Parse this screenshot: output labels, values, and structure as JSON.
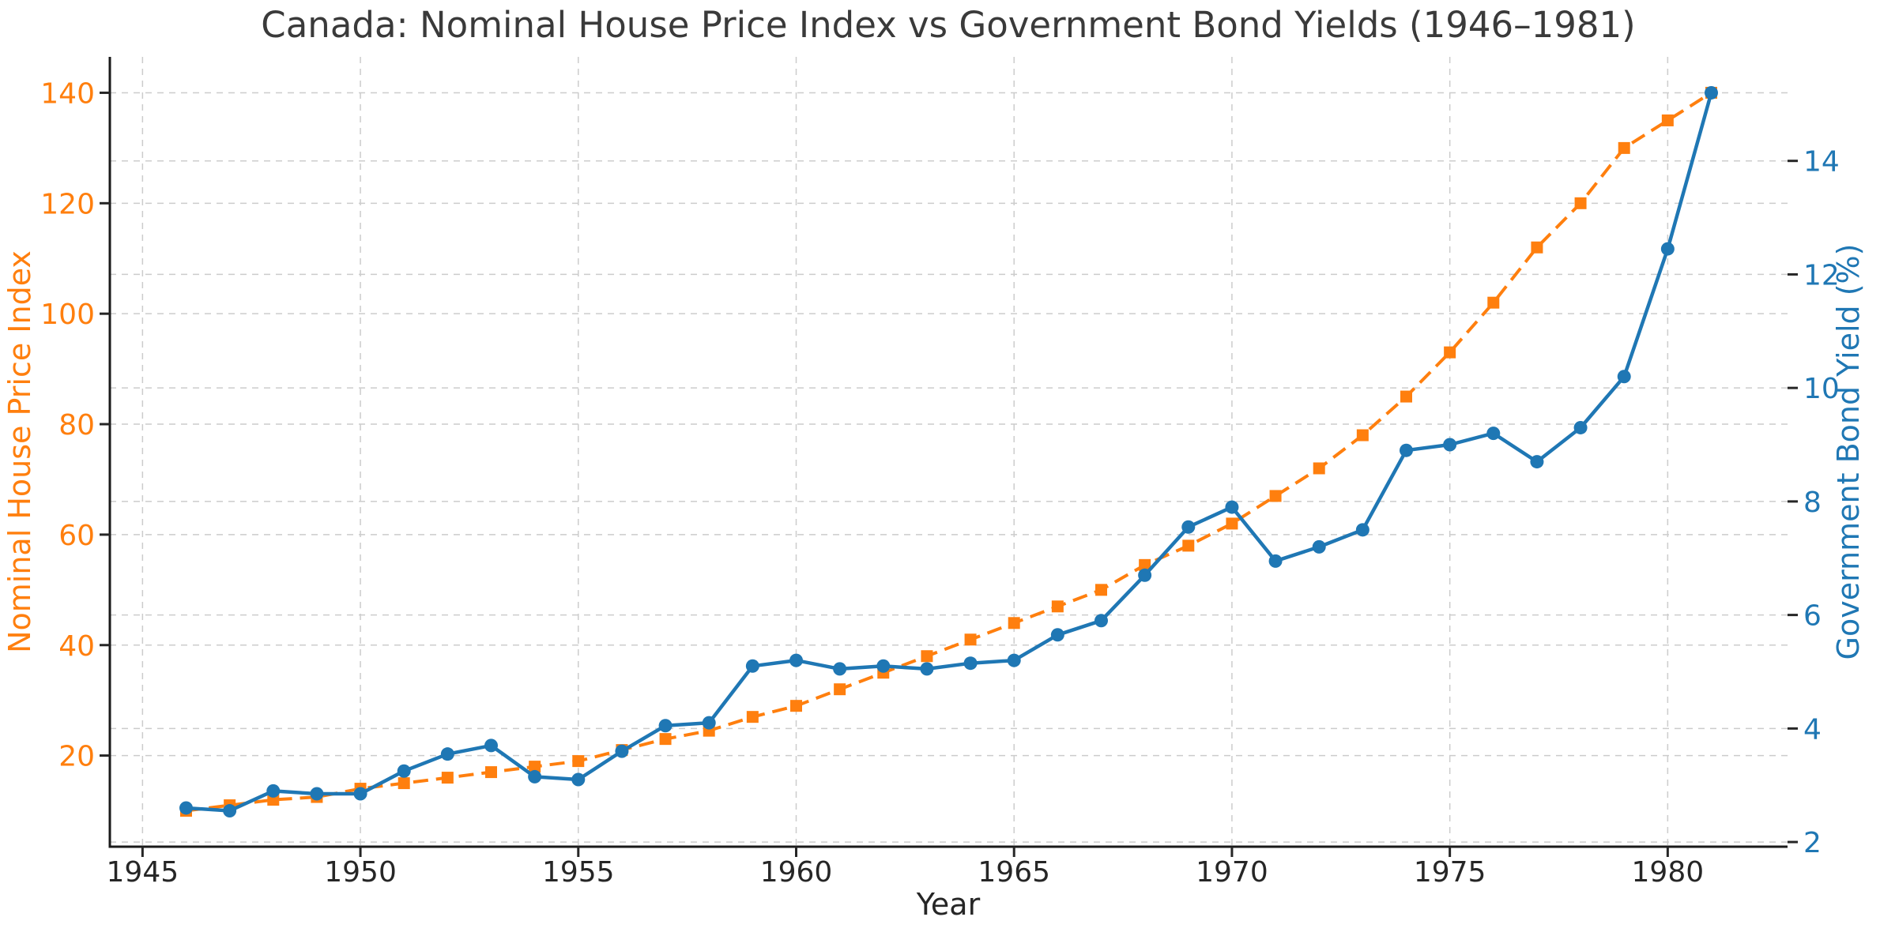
{
  "title": "Canada: Nominal House Price Index vs Government Bond Yields (1946–1981)",
  "x_axis": {
    "label": "Year",
    "tick_labels": [
      "1945",
      "1950",
      "1955",
      "1960",
      "1965",
      "1970",
      "1975",
      "1980"
    ],
    "range": [
      1944.25,
      1982.75
    ]
  },
  "y_left_axis": {
    "label": "Nominal House Price Index",
    "color": "#ff7f0e",
    "tick_labels": [
      "20",
      "40",
      "60",
      "80",
      "100",
      "120",
      "140"
    ],
    "range": [
      3.5,
      146.5
    ]
  },
  "y_right_axis": {
    "label": "Government Bond Yield (%)",
    "color": "#1f77b4",
    "tick_labels": [
      "2",
      "4",
      "6",
      "8",
      "10",
      "12",
      "14"
    ],
    "range": [
      1.9175,
      15.8325
    ]
  },
  "chart_data": {
    "type": "line",
    "title": "Canada: Nominal House Price Index vs Government Bond Yields (1946–1981)",
    "xlabel": "Year",
    "grid": true,
    "legend_position": "none",
    "x": [
      1946,
      1947,
      1948,
      1949,
      1950,
      1951,
      1952,
      1953,
      1954,
      1955,
      1956,
      1957,
      1958,
      1959,
      1960,
      1961,
      1962,
      1963,
      1964,
      1965,
      1966,
      1967,
      1968,
      1969,
      1970,
      1971,
      1972,
      1973,
      1974,
      1975,
      1976,
      1977,
      1978,
      1979,
      1980,
      1981
    ],
    "series": [
      {
        "name": "Nominal House Price Index",
        "axis": "left",
        "color": "#ff7f0e",
        "line_style": "dashed",
        "marker": "square",
        "values": [
          10,
          11,
          12,
          12.5,
          14,
          15,
          16,
          17,
          18,
          19,
          21,
          23,
          24.5,
          27,
          29,
          32,
          35,
          38,
          41,
          44,
          47,
          50,
          54.5,
          58,
          62,
          67,
          72,
          78,
          85,
          93,
          102,
          112,
          120,
          130,
          135,
          140
        ]
      },
      {
        "name": "Government Bond Yield (%)",
        "axis": "right",
        "color": "#1f77b4",
        "line_style": "solid",
        "marker": "circle",
        "values": [
          2.6,
          2.55,
          2.9,
          2.85,
          2.85,
          3.25,
          3.55,
          3.7,
          3.15,
          3.1,
          3.6,
          4.05,
          4.1,
          5.1,
          5.2,
          5.05,
          5.1,
          5.05,
          5.15,
          5.2,
          5.65,
          5.9,
          6.7,
          7.55,
          7.9,
          6.95,
          7.2,
          7.5,
          8.9,
          9.0,
          9.2,
          8.7,
          9.3,
          10.2,
          12.45,
          15.2
        ]
      }
    ]
  },
  "colors": {
    "title_text": "#3a3a3a",
    "tick_text": "#262626",
    "grid_line": "#cccccc",
    "spine": "#1a1a1a",
    "background": "#ffffff",
    "orange_series": "#ff7f0e",
    "blue_series": "#1f77b4"
  }
}
